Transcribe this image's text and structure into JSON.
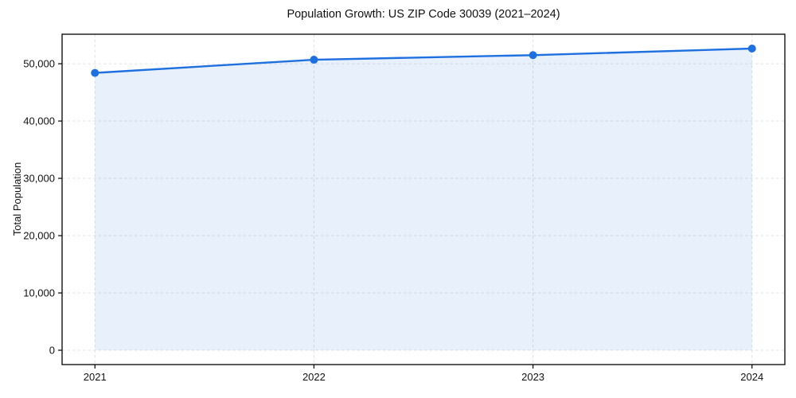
{
  "chart_data": {
    "type": "line",
    "title": "Population Growth: US ZIP Code 30039 (2021–2024)",
    "xlabel": "",
    "ylabel": "Total Population",
    "x": [
      2021,
      2022,
      2023,
      2024
    ],
    "series": [
      {
        "name": "Total Population",
        "values": [
          48400,
          50700,
          51500,
          52650
        ]
      }
    ],
    "xtick_labels": [
      "2021",
      "2022",
      "2023",
      "2024"
    ],
    "ytick_values": [
      0,
      10000,
      20000,
      30000,
      40000,
      50000
    ],
    "ytick_labels": [
      "0",
      "10,000",
      "20,000",
      "30,000",
      "40,000",
      "50,000"
    ],
    "xlim": [
      2020.85,
      2024.15
    ],
    "ylim": [
      -2500,
      55150
    ],
    "grid": true,
    "grid_style": "dashed",
    "legend": "none",
    "area_fill_to": 0,
    "colors": {
      "line": "#1e6fe0",
      "marker": "#1e6fe0",
      "fill_opacity": 0.1,
      "grid": "#e1e1e1",
      "spine": "#000000",
      "text": "#111111",
      "background": "#ffffff"
    },
    "marker": "circle",
    "marker_radius": 5,
    "line_width": 2.4
  }
}
